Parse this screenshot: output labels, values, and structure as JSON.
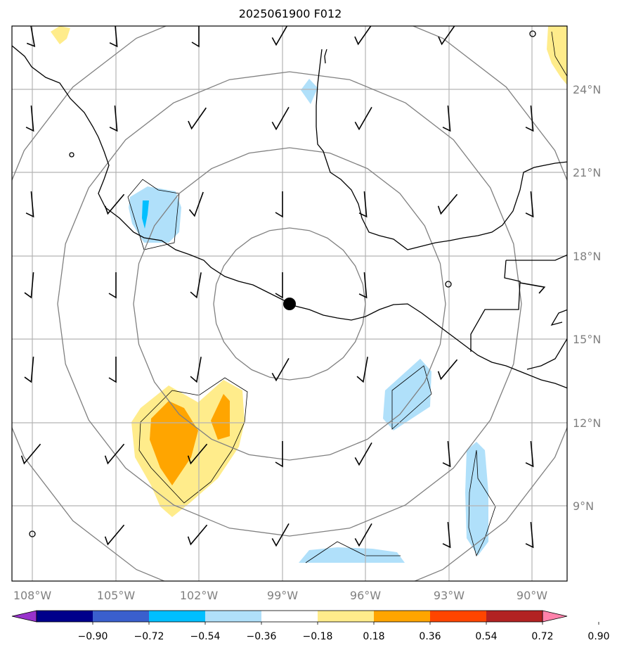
{
  "title": "2025061900 F012",
  "lon_labels": [
    "108°W",
    "105°W",
    "102°W",
    "99°W",
    "96°W",
    "93°W",
    "90°W"
  ],
  "lat_labels": [
    "24°N",
    "21°N",
    "18°N",
    "15°N",
    "12°N",
    "9°N"
  ],
  "colorbar": {
    "ticks": [
      "−0.90",
      "−0.72",
      "−0.54",
      "−0.36",
      "−0.18",
      "0.18",
      "0.36",
      "0.54",
      "0.72",
      "0.90"
    ],
    "colors": [
      "#9932cc",
      "#00008b",
      "#3a5fcd",
      "#00bfff",
      "#b0e0fa",
      "#ffffff",
      "#ffec8b",
      "#ffa500",
      "#ff4500",
      "#b22222",
      "#ff82ab"
    ]
  },
  "colors": {
    "grid": "#b3b3b3",
    "range_ring": "#808080",
    "coast": "#000000",
    "center_marker": "#000000"
  },
  "map": {
    "lon_range": [
      -108.7,
      -88.8
    ],
    "lat_range": [
      6.7,
      26.6
    ],
    "center": {
      "lon": -98.7,
      "lat": 16.2
    },
    "range_rings_deg": [
      3.0,
      5.6,
      8.3,
      11.0
    ]
  }
}
